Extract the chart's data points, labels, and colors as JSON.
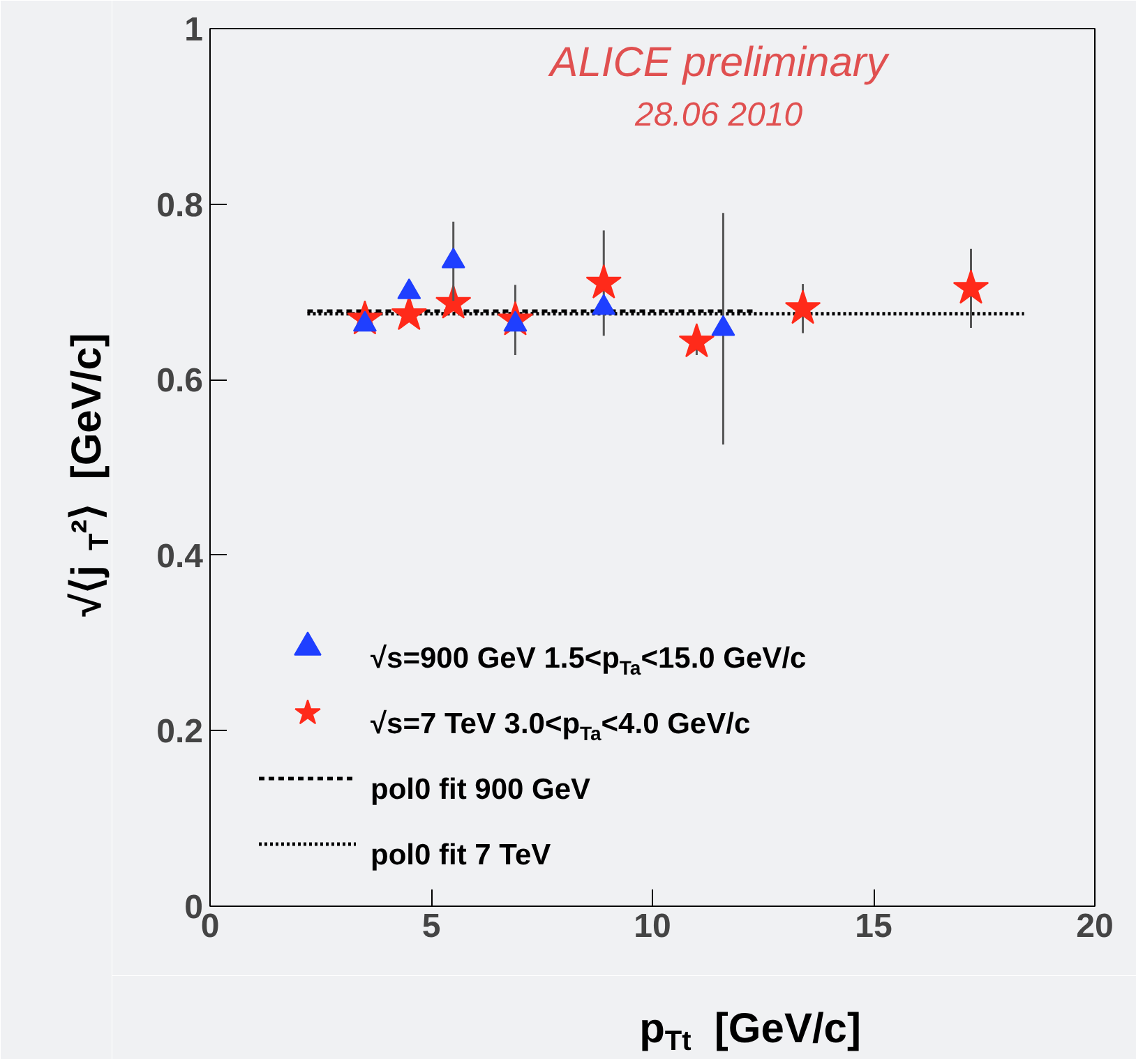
{
  "chart_data": {
    "type": "scatter",
    "xlabel": "p$_{Tt}$  [GeV/c]",
    "ylabel": "√⟨j$_{T}$²⟩  [GeV/c]",
    "annotations": [
      "ALICE preliminary",
      "28.06 2010"
    ],
    "xlim": [
      0,
      20
    ],
    "ylim": [
      0,
      1
    ],
    "xticks": [
      0,
      5,
      10,
      15,
      20
    ],
    "yticks": [
      0,
      0.2,
      0.4,
      0.6,
      0.8,
      1
    ],
    "grid": false,
    "legend": "bottom left",
    "series": [
      {
        "name": "√s=900 GeV 1.5<p$_{Ta}$<15.0 GeV/c",
        "color": "#1f3fff",
        "marker": "triangle",
        "x": [
          3.5,
          4.5,
          5.5,
          6.9,
          8.9,
          11.6
        ],
        "values": [
          0.663,
          0.7,
          0.735,
          0.663,
          0.682,
          0.658
        ],
        "errors": [
          null,
          null,
          0.045,
          null,
          null,
          0.132
        ]
      },
      {
        "name": "√s=7 TeV 3.0<p$_{Ta}$<4.0 GeV/c",
        "color": "#ff2a1a",
        "marker": "star",
        "x": [
          3.5,
          4.5,
          5.5,
          6.9,
          8.9,
          11.0,
          13.4,
          17.2
        ],
        "values": [
          0.669,
          0.674,
          0.687,
          0.668,
          0.71,
          0.643,
          0.681,
          0.704
        ],
        "errors": [
          null,
          null,
          null,
          0.04,
          0.06,
          0.015,
          0.028,
          0.045
        ]
      },
      {
        "name": "pol0 fit 900 GeV",
        "type": "line",
        "color": "#000000",
        "line_style": "dashed",
        "x": [
          2.2,
          12.3
        ],
        "values": [
          0.678,
          0.678
        ]
      },
      {
        "name": "pol0 fit 7 TeV",
        "type": "line",
        "color": "#000000",
        "line_style": "dotted",
        "x": [
          2.2,
          18.4
        ],
        "values": [
          0.675,
          0.675
        ]
      }
    ]
  }
}
